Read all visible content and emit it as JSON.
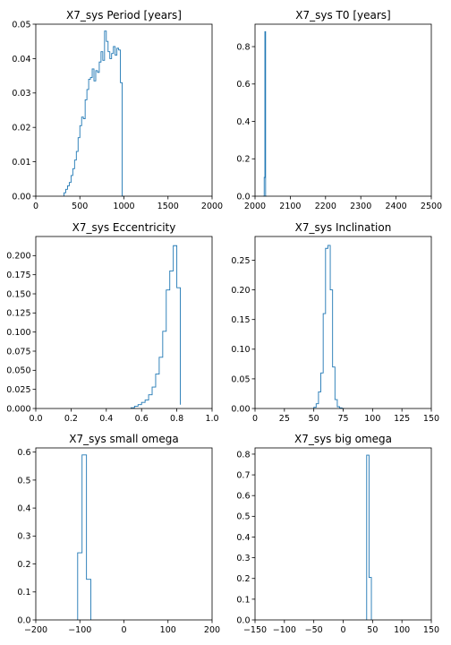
{
  "chart_data": [
    {
      "type": "histogram",
      "title": "X7_sys Period [years]",
      "xlim": [
        0,
        2000
      ],
      "ylim": [
        0,
        0.05
      ],
      "xticks": [
        "0",
        "500",
        "1000",
        "1500",
        "2000"
      ],
      "xtick_values": [
        0,
        500,
        1000,
        1500,
        2000
      ],
      "yticks": [
        "0.00",
        "0.01",
        "0.02",
        "0.03",
        "0.04",
        "0.05"
      ],
      "ytick_values": [
        0,
        0.01,
        0.02,
        0.03,
        0.04,
        0.05
      ],
      "bin_edges": [
        320,
        340,
        360,
        380,
        400,
        420,
        440,
        460,
        480,
        500,
        520,
        540,
        560,
        580,
        600,
        620,
        640,
        660,
        680,
        700,
        720,
        740,
        760,
        780,
        800,
        820,
        840,
        860,
        880,
        900,
        920,
        940,
        960,
        980,
        1000
      ],
      "values": [
        0.001,
        0.002,
        0.003,
        0.004,
        0.006,
        0.008,
        0.0105,
        0.013,
        0.017,
        0.0205,
        0.023,
        0.0225,
        0.028,
        0.031,
        0.034,
        0.0345,
        0.037,
        0.0335,
        0.0365,
        0.036,
        0.039,
        0.042,
        0.0395,
        0.048,
        0.045,
        0.042,
        0.04,
        0.0415,
        0.0435,
        0.041,
        0.043,
        0.0425,
        0.033,
        0.0
      ]
    },
    {
      "type": "histogram",
      "title": "X7_sys T0 [years]",
      "xlim": [
        2000,
        2500
      ],
      "ylim": [
        0,
        0.92
      ],
      "xticks": [
        "2000",
        "2100",
        "2200",
        "2300",
        "2400",
        "2500"
      ],
      "xtick_values": [
        2000,
        2100,
        2200,
        2300,
        2400,
        2500
      ],
      "yticks": [
        "0.0",
        "0.2",
        "0.4",
        "0.6",
        "0.8"
      ],
      "ytick_values": [
        0,
        0.2,
        0.4,
        0.6,
        0.8
      ],
      "bin_edges": [
        2024,
        2026,
        2028,
        2030,
        2032
      ],
      "values": [
        0.0,
        0.1,
        0.88,
        0.0
      ]
    },
    {
      "type": "histogram",
      "title": "X7_sys Eccentricity",
      "xlim": [
        0,
        1
      ],
      "ylim": [
        0,
        0.225
      ],
      "xticks": [
        "0.0",
        "0.2",
        "0.4",
        "0.6",
        "0.8",
        "1.0"
      ],
      "xtick_values": [
        0,
        0.2,
        0.4,
        0.6,
        0.8,
        1.0
      ],
      "yticks": [
        "0.000",
        "0.025",
        "0.050",
        "0.075",
        "0.100",
        "0.125",
        "0.150",
        "0.175",
        "0.200"
      ],
      "ytick_values": [
        0,
        0.025,
        0.05,
        0.075,
        0.1,
        0.125,
        0.15,
        0.175,
        0.2
      ],
      "bin_edges": [
        0.54,
        0.56,
        0.58,
        0.6,
        0.62,
        0.64,
        0.66,
        0.68,
        0.7,
        0.72,
        0.74,
        0.76,
        0.78,
        0.8,
        0.82
      ],
      "values": [
        0.001,
        0.003,
        0.005,
        0.008,
        0.011,
        0.018,
        0.028,
        0.045,
        0.067,
        0.101,
        0.155,
        0.18,
        0.213,
        0.158,
        0.005
      ]
    },
    {
      "type": "histogram",
      "title": "X7_sys Inclination",
      "xlim": [
        0,
        150
      ],
      "ylim": [
        0,
        0.29
      ],
      "xticks": [
        "0",
        "25",
        "50",
        "75",
        "100",
        "125",
        "150"
      ],
      "xtick_values": [
        0,
        25,
        50,
        75,
        100,
        125,
        150
      ],
      "yticks": [
        "0.00",
        "0.05",
        "0.10",
        "0.15",
        "0.20",
        "0.25"
      ],
      "ytick_values": [
        0,
        0.05,
        0.1,
        0.15,
        0.2,
        0.25
      ],
      "bin_edges": [
        50,
        52,
        54,
        56,
        58,
        60,
        62,
        64,
        66,
        68,
        70,
        72,
        74,
        76
      ],
      "values": [
        0.002,
        0.008,
        0.028,
        0.06,
        0.16,
        0.27,
        0.275,
        0.2,
        0.07,
        0.015,
        0.003,
        0.001,
        0.0
      ]
    },
    {
      "type": "histogram",
      "title": "X7_sys small omega",
      "xlim": [
        -200,
        200
      ],
      "ylim": [
        0,
        0.615
      ],
      "xticks": [
        "−200",
        "−100",
        "0",
        "100",
        "200"
      ],
      "xtick_values": [
        -200,
        -100,
        0,
        100,
        200
      ],
      "yticks": [
        "0.0",
        "0.1",
        "0.2",
        "0.3",
        "0.4",
        "0.5",
        "0.6"
      ],
      "ytick_values": [
        0,
        0.1,
        0.2,
        0.3,
        0.4,
        0.5,
        0.6
      ],
      "bin_edges": [
        -105,
        -95,
        -85,
        -75
      ],
      "values": [
        0.24,
        0.59,
        0.145
      ]
    },
    {
      "type": "histogram",
      "title": "X7_sys big omega",
      "xlim": [
        -150,
        150
      ],
      "ylim": [
        0,
        0.83
      ],
      "xticks": [
        "−150",
        "−100",
        "−50",
        "0",
        "50",
        "100",
        "150"
      ],
      "xtick_values": [
        -150,
        -100,
        -50,
        0,
        50,
        100,
        150
      ],
      "yticks": [
        "0.0",
        "0.1",
        "0.2",
        "0.3",
        "0.4",
        "0.5",
        "0.6",
        "0.7",
        "0.8"
      ],
      "ytick_values": [
        0,
        0.1,
        0.2,
        0.3,
        0.4,
        0.5,
        0.6,
        0.7,
        0.8
      ],
      "bin_edges": [
        40,
        44,
        48
      ],
      "values": [
        0.795,
        0.205
      ]
    }
  ]
}
